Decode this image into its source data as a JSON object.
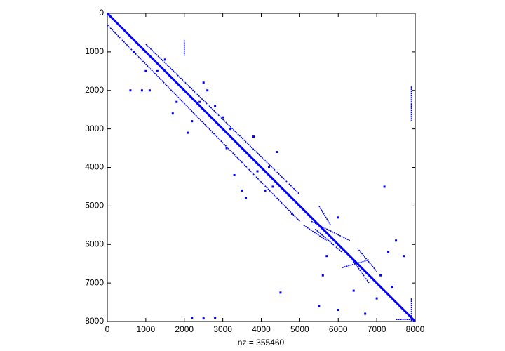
{
  "chart_data": {
    "type": "spy",
    "xlabel": "nz = 355460",
    "color": "#0000ff",
    "xlim": [
      0,
      8000
    ],
    "ylim": [
      0,
      8000
    ],
    "y_reversed": true,
    "xticks": [
      0,
      1000,
      2000,
      3000,
      4000,
      5000,
      6000,
      7000,
      8000
    ],
    "yticks": [
      0,
      1000,
      2000,
      3000,
      4000,
      5000,
      6000,
      7000,
      8000
    ],
    "segments": [
      {
        "x": [
          0,
          8000
        ],
        "y": [
          0,
          8000
        ]
      },
      {
        "x": [
          0,
          5000
        ],
        "y": [
          300,
          5400
        ]
      },
      {
        "x": [
          1000,
          5000
        ],
        "y": [
          800,
          4700
        ]
      },
      {
        "x": [
          5300,
          6300
        ],
        "y": [
          5400,
          5900
        ]
      },
      {
        "x": [
          5400,
          6100
        ],
        "y": [
          5600,
          6200
        ]
      },
      {
        "x": [
          5500,
          5800
        ],
        "y": [
          5000,
          5500
        ]
      },
      {
        "x": [
          5100,
          5700
        ],
        "y": [
          5500,
          5900
        ]
      },
      {
        "x": [
          6300,
          6800
        ],
        "y": [
          6300,
          7000
        ]
      },
      {
        "x": [
          6500,
          7000
        ],
        "y": [
          6100,
          6700
        ]
      },
      {
        "x": [
          6100,
          6800
        ],
        "y": [
          6600,
          6400
        ]
      },
      {
        "x": [
          7900,
          7900
        ],
        "y": [
          7400,
          8000
        ]
      },
      {
        "x": [
          7500,
          8000
        ],
        "y": [
          7950,
          7950
        ]
      },
      {
        "x": [
          2000,
          2000
        ],
        "y": [
          700,
          1100
        ]
      },
      {
        "x": [
          7900,
          7900
        ],
        "y": [
          1900,
          2800
        ]
      }
    ],
    "points": {
      "x": [
        700,
        900,
        1300,
        1500,
        1800,
        2200,
        2600,
        2800,
        3100,
        3300,
        3500,
        3700,
        3900,
        4100,
        4300,
        4800,
        600,
        1100,
        2500,
        3000,
        3600,
        4400,
        4700,
        5700,
        6000,
        6400,
        6700,
        7100,
        7300,
        7500,
        7700,
        7200,
        4500,
        5500,
        6000,
        2200,
        2500,
        2800,
        1000,
        1700,
        2100,
        2400,
        3200,
        3800,
        4200,
        5600,
        7000,
        7400
      ],
      "y": [
        1000,
        2000,
        1500,
        1200,
        2300,
        2800,
        2000,
        2400,
        3500,
        4200,
        4600,
        3700,
        4100,
        4600,
        4500,
        5200,
        2000,
        2000,
        1800,
        2700,
        4800,
        3600,
        4700,
        6300,
        5300,
        7200,
        7800,
        6800,
        6200,
        5900,
        6300,
        4500,
        7250,
        7600,
        7700,
        7900,
        7920,
        7900,
        1500,
        2600,
        3100,
        2300,
        3000,
        3200,
        4000,
        6800,
        7400,
        7100
      ]
    }
  }
}
